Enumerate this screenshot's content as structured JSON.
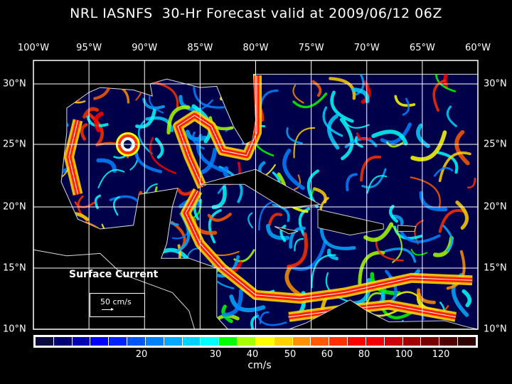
{
  "title": "NRL IASNFS  30-Hr Forecast valid at 2009/06/12 06Z",
  "longitude_labels": [
    "100°W",
    "95°W",
    "90°W",
    "85°W",
    "80°W",
    "75°W",
    "70°W",
    "65°W",
    "60°W"
  ],
  "latitude_labels": [
    "30°N",
    "25°N",
    "20°N",
    "15°N",
    "10°N"
  ],
  "map_label": "Surface Current",
  "reference_vector": {
    "label": "50 cm/s",
    "value_cm_s": 50
  },
  "colorbar": {
    "unit": "cm/s",
    "tick_labels": [
      "20",
      "30",
      "40",
      "50",
      "60",
      "80",
      "100",
      "120"
    ],
    "colors": [
      "#0a0a40",
      "#00006e",
      "#0000b0",
      "#0000ff",
      "#0022ff",
      "#0055ff",
      "#0080ff",
      "#00aaff",
      "#00d2ff",
      "#00ffff",
      "#00ff00",
      "#a8ff00",
      "#ffff00",
      "#ffd200",
      "#ff9000",
      "#ff5a00",
      "#ff3000",
      "#ff0000",
      "#f00000",
      "#cc0000",
      "#a00000",
      "#780000",
      "#500000",
      "#300000"
    ]
  }
}
